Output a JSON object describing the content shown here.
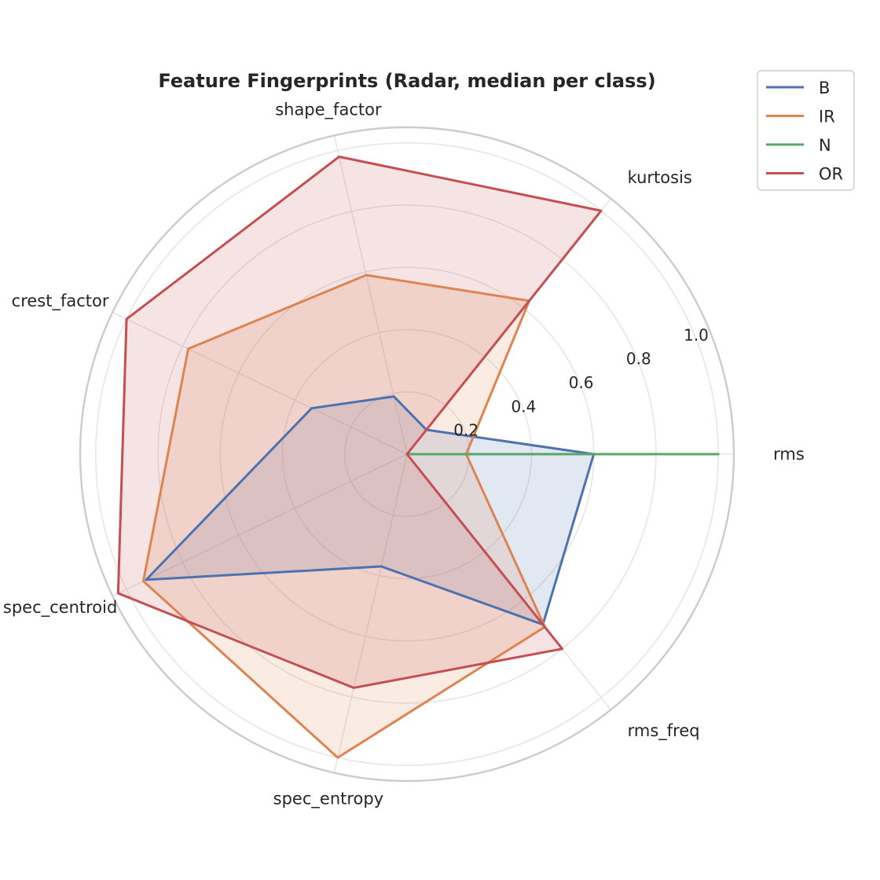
{
  "chart_data": {
    "type": "radar",
    "title": "Feature Fingerprints (Radar, median per class)",
    "axes": [
      "rms",
      "kurtosis",
      "shape_factor",
      "crest_factor",
      "spec_centroid",
      "spec_entropy",
      "rms_freq"
    ],
    "rlim": [
      0,
      1.05
    ],
    "rticks": [
      0.2,
      0.4,
      0.6,
      0.8,
      1.0
    ],
    "rtick_labels": [
      "0.2",
      "0.4",
      "0.6",
      "0.8",
      "1.0"
    ],
    "grid": true,
    "legend_position": "top-right",
    "series": [
      {
        "name": "B",
        "color": "#4c72b0",
        "values": [
          0.6,
          0.1,
          0.19,
          0.34,
          0.93,
          0.37,
          0.7
        ]
      },
      {
        "name": "IR",
        "color": "#dd8452",
        "values": [
          0.19,
          0.63,
          0.59,
          0.78,
          0.94,
          1.0,
          0.71
        ]
      },
      {
        "name": "N",
        "color": "#55a868",
        "values": [
          1.0,
          0.0,
          0.0,
          0.0,
          0.0,
          0.0,
          0.0
        ]
      },
      {
        "name": "OR",
        "color": "#c44e52",
        "values": [
          0.0,
          1.0,
          0.98,
          1.0,
          1.03,
          0.77,
          0.8
        ]
      }
    ]
  }
}
